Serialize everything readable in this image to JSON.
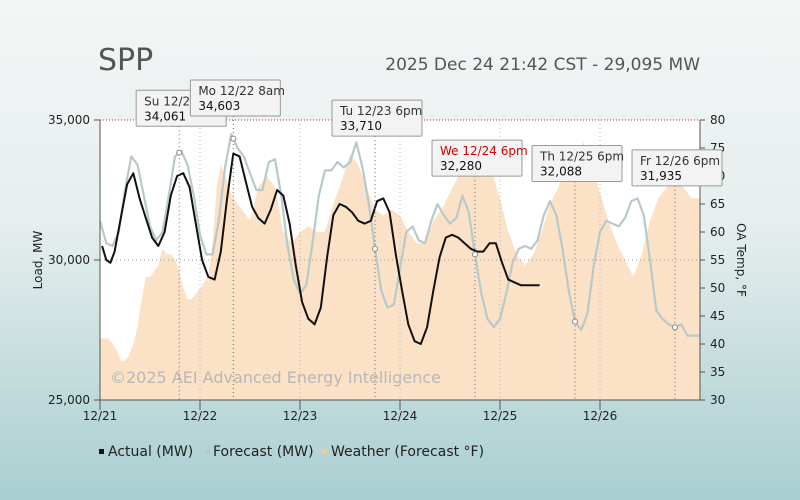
{
  "chart_data": {
    "type": "line",
    "title": "SPP",
    "subtitle": "2025 Dec 24 21:42 CST - 29,095 MW",
    "ylabel": "Load, MW",
    "y2label": "OA Temp, °F",
    "ylim": [
      25000,
      35000
    ],
    "y2lim": [
      30,
      80
    ],
    "yticks": [
      "25,000",
      "30,000",
      "35,000"
    ],
    "y2ticks": [
      "30",
      "35",
      "40",
      "45",
      "50",
      "55",
      "60",
      "65",
      "70",
      "75",
      "80"
    ],
    "xticks": [
      "12/21",
      "12/22",
      "12/23",
      "12/24",
      "12/25",
      "12/26"
    ],
    "xlim_hours": [
      0,
      144
    ],
    "watermark": "©2025 AEI Advanced Energy Intelligence",
    "legend": [
      {
        "label": "Actual (MW)",
        "color": "#111111"
      },
      {
        "label": "Forecast (MW)",
        "color": "#b9c9c9"
      },
      {
        "label": "Weather (Forecast °F)",
        "color": "#f7c995"
      }
    ],
    "series": [
      {
        "name": "Actual (MW)",
        "color": "#111111",
        "x": [
          0.5,
          1.5,
          2.5,
          3.5,
          5,
          6.5,
          8,
          9.5,
          11,
          12.5,
          14,
          15.5,
          17,
          18.5,
          20,
          21.5,
          23,
          24.5,
          26,
          27.5,
          29,
          30.5,
          32,
          33.5,
          35,
          36.5,
          38,
          39.5,
          41,
          42.5,
          44,
          45.5,
          47,
          48.5,
          50,
          51.5,
          53,
          54.5,
          56,
          57.5,
          59,
          60.5,
          62,
          63.5,
          65,
          66.5,
          68,
          69.5,
          71,
          72.5,
          74,
          75.5,
          77,
          78.5,
          80,
          81.5,
          83,
          84.5,
          86,
          87.5,
          89,
          90.5,
          92,
          93.5,
          95,
          96.5,
          98,
          99.5,
          101,
          102.5,
          104,
          105.5
        ],
        "y": [
          30500,
          30000,
          29900,
          30300,
          31500,
          32700,
          33100,
          32200,
          31500,
          30800,
          30500,
          31000,
          32300,
          33000,
          33100,
          32600,
          31300,
          30000,
          29400,
          29300,
          30300,
          32200,
          33800,
          33700,
          32800,
          31900,
          31500,
          31300,
          31800,
          32500,
          32300,
          31300,
          29800,
          28500,
          27900,
          27700,
          28300,
          30100,
          31600,
          32000,
          31900,
          31700,
          31400,
          31300,
          31400,
          32100,
          32200,
          31700,
          30200,
          28900,
          27700,
          27100,
          27000,
          27600,
          28900,
          30100,
          30800,
          30900,
          30800,
          30600,
          30400,
          30300,
          30300,
          30600,
          30600,
          29900,
          29300,
          29200,
          29100,
          29100,
          29100,
          29100
        ]
      },
      {
        "name": "Forecast (MW)",
        "color": "#b9c9c9",
        "x": [
          0,
          1.5,
          3,
          4.5,
          6,
          7.5,
          9,
          10.5,
          12,
          13.5,
          15,
          16.5,
          18,
          19.5,
          21,
          22.5,
          24,
          25.5,
          27,
          28.5,
          30,
          31.5,
          33,
          34.5,
          36,
          37.5,
          39,
          40.5,
          42,
          43.5,
          45,
          46.5,
          48,
          49.5,
          51,
          52.5,
          54,
          55.5,
          57,
          58.5,
          60,
          61.5,
          63,
          64.5,
          66,
          67.5,
          69,
          70.5,
          72,
          73.5,
          75,
          76.5,
          78,
          79.5,
          81,
          82.5,
          84,
          85.5,
          87,
          88.5,
          90,
          91.5,
          93,
          94.5,
          96,
          97.5,
          99,
          100.5,
          102,
          103.5,
          105,
          106.5,
          108,
          109.5,
          111,
          112.5,
          114,
          115.5,
          117,
          118.5,
          120,
          121.5,
          123,
          124.5,
          126,
          127.5,
          129,
          130.5,
          132,
          133.5,
          135,
          136.5,
          138,
          139.5,
          141,
          142.5,
          144
        ],
        "y": [
          31400,
          30600,
          30500,
          31000,
          32500,
          33700,
          33400,
          32300,
          31200,
          30700,
          31000,
          32300,
          33700,
          33900,
          33400,
          32300,
          30900,
          30200,
          30200,
          31400,
          33300,
          34500,
          34000,
          33700,
          33100,
          32500,
          32500,
          33500,
          33600,
          32300,
          30500,
          29300,
          28800,
          29100,
          30600,
          32300,
          33200,
          33200,
          33500,
          33300,
          33500,
          34200,
          33300,
          32000,
          30400,
          28900,
          28300,
          28400,
          29700,
          31000,
          31200,
          30700,
          30600,
          31400,
          32000,
          31600,
          31300,
          31500,
          32300,
          31700,
          30200,
          28800,
          27900,
          27600,
          27900,
          28800,
          29900,
          30400,
          30500,
          30400,
          30700,
          31600,
          32100,
          31600,
          30400,
          28900,
          27800,
          27500,
          28100,
          29800,
          31000,
          31400,
          31300,
          31200,
          31500,
          32100,
          32200,
          31600,
          30000,
          28200,
          27900,
          27700,
          27600,
          27700,
          27300,
          27300,
          27300
        ]
      },
      {
        "name": "Weather (Forecast °F)",
        "color": "#f7c995",
        "x": [
          0,
          2,
          4,
          5,
          6,
          7,
          8,
          9,
          10,
          11,
          12,
          13,
          14,
          15,
          16,
          17,
          18,
          19,
          20,
          21,
          22,
          23,
          24,
          25,
          26,
          27,
          28,
          29,
          30,
          32,
          34,
          36,
          38,
          40,
          42,
          44,
          46,
          48,
          50,
          52,
          54,
          56,
          58,
          60,
          62,
          64,
          66,
          68,
          70,
          72,
          74,
          76,
          78,
          80,
          82,
          84,
          86,
          88,
          90,
          92,
          94,
          96,
          98,
          100,
          102,
          104,
          106,
          108,
          110,
          112,
          114,
          116,
          118,
          120,
          122,
          124,
          126,
          128,
          130,
          132,
          134,
          136,
          138,
          140,
          142,
          144
        ],
        "y": [
          41,
          41,
          39,
          37,
          37,
          38,
          40,
          43,
          48,
          52,
          52,
          53,
          54,
          57,
          56,
          56,
          55,
          53,
          50,
          48,
          48,
          49,
          50,
          51,
          52,
          58,
          68,
          72,
          70,
          66,
          64,
          62,
          68,
          70,
          68,
          60,
          58,
          60,
          61,
          60,
          60,
          65,
          69,
          74,
          72,
          68,
          64,
          63,
          64,
          63,
          60,
          58,
          58,
          62,
          64,
          67,
          70,
          72,
          74,
          75,
          71,
          66,
          60,
          56,
          54,
          56,
          60,
          65,
          68,
          72,
          74,
          76,
          72,
          67,
          62,
          58,
          55,
          52,
          56,
          62,
          66,
          68,
          70,
          68,
          66,
          66
        ]
      }
    ],
    "callouts": [
      {
        "label": "Su 12/21",
        "value": "34,061",
        "highlight": false
      },
      {
        "label": "Mo 12/22 8am",
        "value": "34,603",
        "highlight": false
      },
      {
        "label": "Tu 12/23 6pm",
        "value": "33,710",
        "highlight": false
      },
      {
        "label": "We 12/24 6pm",
        "value": "32,280",
        "highlight": true
      },
      {
        "label": "Th 12/25 6pm",
        "value": "32,088",
        "highlight": false
      },
      {
        "label": "Fr 12/26 6pm",
        "value": "31,935",
        "highlight": false
      }
    ]
  }
}
